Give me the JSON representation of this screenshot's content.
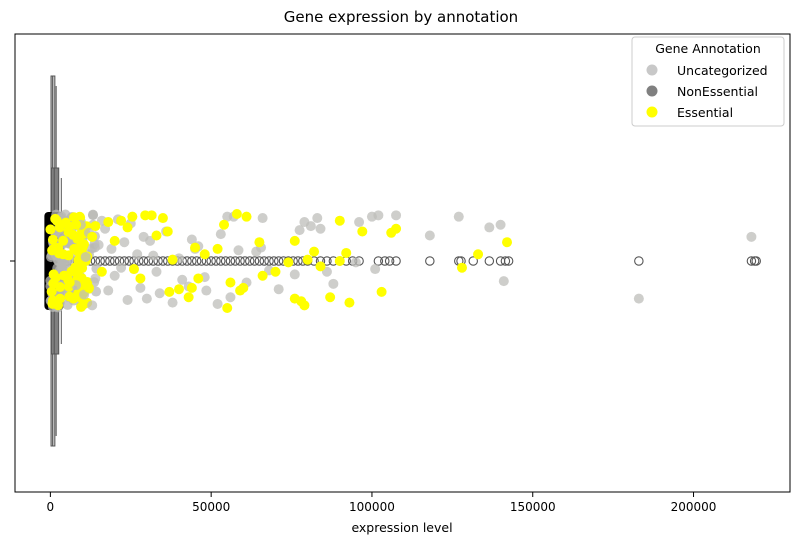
{
  "chart_data": {
    "type": "scatter",
    "title": "Gene expression by annotation",
    "xlabel": "expression level",
    "ylabel": "",
    "xlim": [
      -11000,
      230000
    ],
    "x_ticks": [
      0,
      50000,
      100000,
      150000,
      200000
    ],
    "x_tick_labels": [
      "0",
      "50000",
      "100000",
      "150000",
      "200000"
    ],
    "grid": false,
    "legend": {
      "title": "Gene Annotation",
      "placement": "top-right",
      "entries": [
        {
          "label": "Uncategorized",
          "color": "#c8c8c8"
        },
        {
          "label": "NonEssential",
          "color": "#808080"
        },
        {
          "label": "Essential",
          "color": "#ffff00"
        }
      ]
    },
    "boxplots": [
      {
        "group": "Uncategorized",
        "color": "#c8c8c8",
        "q1": 200,
        "median": 700,
        "q3": 1400,
        "whisker_low": 0,
        "whisker_high": 1800
      },
      {
        "group": "NonEssential",
        "color": "#808080",
        "q1": 300,
        "median": 1200,
        "q3": 2600,
        "whisker_low": 0,
        "whisker_high": 3400,
        "outliers": [
          5200,
          6800,
          8400,
          9600,
          11000,
          12500,
          14000,
          15500,
          17000,
          18500,
          20000,
          21500,
          23000,
          24500,
          26000,
          27500,
          29000,
          30500,
          32000,
          33500,
          35000,
          36500,
          38000,
          39500,
          41000,
          42500,
          44000,
          45500,
          47000,
          48500,
          50000,
          51500,
          53000,
          54500,
          56000,
          57500,
          59000,
          60500,
          62000,
          63500,
          65000,
          66500,
          68000,
          69500,
          71000,
          72500,
          74000,
          75500,
          77000,
          78500,
          80000,
          82000,
          84000,
          86000,
          88000,
          90000,
          92000,
          94000,
          96000,
          102000,
          104000,
          105500,
          107500,
          118000,
          127000,
          127700,
          131500,
          136500,
          140000,
          141500,
          142500,
          183000,
          218000,
          219000,
          219500
        ]
      },
      {
        "group": "Essential",
        "color": "#ffff00",
        "q1": 150,
        "median": 500,
        "q3": 1000,
        "whisker_low": 0,
        "whisker_high": 1500
      }
    ],
    "series": [
      {
        "name": "Uncategorized",
        "color": "#c8c8c8",
        "x": [
          100000,
          102000,
          107500,
          127000,
          136500,
          140000,
          118000,
          96000,
          83000,
          79000,
          77500,
          84000,
          66000,
          64000,
          57000,
          55000,
          53000,
          45000,
          44000,
          41000,
          38000,
          34000,
          30000,
          27000,
          24000,
          21000,
          18000,
          15000,
          13000,
          11000,
          9500,
          8000,
          61000,
          68000,
          71000,
          76000,
          86000,
          88000,
          95000,
          101000,
          141000,
          183000,
          218000,
          56000,
          52000,
          48000,
          46000,
          43000,
          40000,
          36000,
          33000,
          31000,
          28000,
          25000,
          22000,
          19000,
          16000,
          14000,
          12000,
          10500,
          58500,
          65500,
          81000,
          48500,
          32000,
          29000,
          26000,
          23000,
          20000,
          17000
        ],
        "y": [
          0.33,
          0.34,
          0.34,
          0.33,
          0.25,
          0.27,
          0.19,
          0.29,
          0.32,
          0.29,
          0.23,
          0.24,
          0.32,
          0.07,
          0.33,
          0.33,
          0.2,
          0.09,
          0.16,
          -0.14,
          -0.31,
          -0.24,
          -0.28,
          0.05,
          -0.29,
          0.31,
          -0.22,
          0.12,
          -0.33,
          0.03,
          0.27,
          -0.18,
          -0.16,
          -0.07,
          -0.21,
          -0.1,
          -0.08,
          -0.17,
          -0.01,
          -0.06,
          -0.15,
          -0.28,
          0.18,
          -0.27,
          -0.32,
          -0.12,
          0.11,
          -0.19,
          0.02,
          0.22,
          -0.08,
          0.15,
          -0.2,
          0.28,
          -0.05,
          0.09,
          0.3,
          -0.13,
          0.21,
          -0.25,
          0.08,
          0.1,
          0.26,
          -0.22,
          0.04,
          0.18,
          -0.06,
          0.14,
          -0.11,
          0.24
        ]
      },
      {
        "name": "Essential",
        "color": "#ffff00",
        "x": [
          29500,
          31500,
          35000,
          25500,
          22000,
          36500,
          54000,
          58000,
          61000,
          65000,
          76000,
          82000,
          90000,
          97000,
          107500,
          106000,
          92000,
          84000,
          80000,
          74000,
          70000,
          66000,
          60000,
          56000,
          52000,
          48000,
          46000,
          44000,
          40000,
          38000,
          28000,
          26000,
          24000,
          20000,
          18000,
          14000,
          12000,
          10000,
          8000,
          6000,
          4000,
          3000,
          2000,
          1000,
          79000,
          78000,
          93000,
          103000,
          76000,
          87000,
          55000,
          133000,
          142000,
          128000,
          90000,
          45000,
          43000,
          59000,
          37000,
          33000,
          16000,
          13000
        ],
        "y": [
          0.34,
          0.34,
          0.32,
          0.33,
          0.3,
          0.22,
          0.27,
          0.35,
          0.33,
          0.14,
          0.15,
          0.07,
          0.3,
          0.22,
          0.24,
          0.21,
          0.06,
          -0.04,
          0.01,
          -0.01,
          -0.08,
          -0.11,
          -0.2,
          -0.16,
          0.09,
          0.05,
          -0.13,
          -0.2,
          -0.21,
          0.01,
          -0.13,
          -0.06,
          0.25,
          0.15,
          0.29,
          0.26,
          -0.2,
          0.1,
          0.27,
          -0.16,
          0.05,
          -0.28,
          0.3,
          -0.1,
          -0.33,
          -0.3,
          -0.31,
          -0.23,
          -0.28,
          -0.27,
          -0.35,
          0.05,
          0.14,
          -0.05,
          0.0,
          0.1,
          -0.27,
          -0.22,
          -0.23,
          0.19,
          -0.08,
          0.18
        ]
      }
    ],
    "dense_cluster": {
      "note": "",
      "x_range": [
        0,
        15000
      ]
    }
  }
}
